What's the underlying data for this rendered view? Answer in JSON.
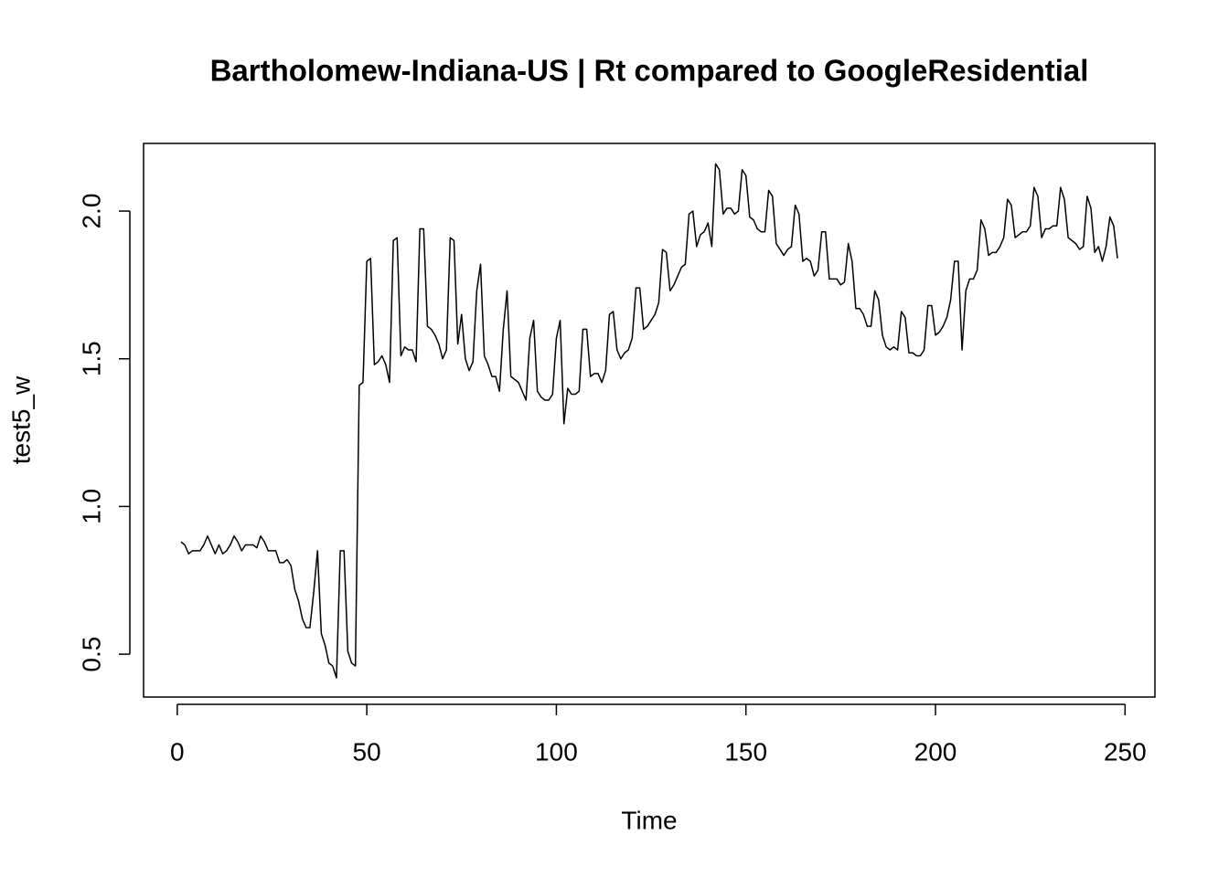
{
  "chart_data": {
    "type": "line",
    "title": "Bartholomew-Indiana-US | Rt compared to GoogleResidential",
    "x_label": "Time",
    "y_label": "test5_w",
    "color": "#000000",
    "x": [
      1,
      2,
      3,
      4,
      5,
      6,
      7,
      8,
      9,
      10,
      11,
      12,
      13,
      14,
      15,
      16,
      17,
      18,
      19,
      20,
      21,
      22,
      23,
      24,
      25,
      26,
      27,
      28,
      29,
      30,
      31,
      32,
      33,
      34,
      35,
      36,
      37,
      38,
      39,
      40,
      41,
      42,
      43,
      44,
      45,
      46,
      47,
      48,
      49,
      50,
      51,
      52,
      53,
      54,
      55,
      56,
      57,
      58,
      59,
      60,
      61,
      62,
      63,
      64,
      65,
      66,
      67,
      68,
      69,
      70,
      71,
      72,
      73,
      74,
      75,
      76,
      77,
      78,
      79,
      80,
      81,
      82,
      83,
      84,
      85,
      86,
      87,
      88,
      89,
      90,
      91,
      92,
      93,
      94,
      95,
      96,
      97,
      98,
      99,
      100,
      101,
      102,
      103,
      104,
      105,
      106,
      107,
      108,
      109,
      110,
      111,
      112,
      113,
      114,
      115,
      116,
      117,
      118,
      119,
      120,
      121,
      122,
      123,
      124,
      125,
      126,
      127,
      128,
      129,
      130,
      131,
      132,
      133,
      134,
      135,
      136,
      137,
      138,
      139,
      140,
      141,
      142,
      143,
      144,
      145,
      146,
      147,
      148,
      149,
      150,
      151,
      152,
      153,
      154,
      155,
      156,
      157,
      158,
      159,
      160,
      161,
      162,
      163,
      164,
      165,
      166,
      167,
      168,
      169,
      170,
      171,
      172,
      173,
      174,
      175,
      176,
      177,
      178,
      179,
      180,
      181,
      182,
      183,
      184,
      185,
      186,
      187,
      188,
      189,
      190,
      191,
      192,
      193,
      194,
      195,
      196,
      197,
      198,
      199,
      200,
      201,
      202,
      203,
      204,
      205,
      206,
      207,
      208,
      209,
      210,
      211,
      212,
      213,
      214,
      215,
      216,
      217,
      218,
      219,
      220,
      221,
      222,
      223,
      224,
      225,
      226,
      227,
      228,
      229,
      230,
      231,
      232,
      233,
      234,
      235,
      236,
      237,
      238,
      239,
      240,
      241,
      242,
      243,
      244,
      245,
      246,
      247,
      248
    ],
    "values": [
      0.88,
      0.87,
      0.84,
      0.85,
      0.85,
      0.85,
      0.87,
      0.9,
      0.87,
      0.84,
      0.87,
      0.84,
      0.85,
      0.87,
      0.9,
      0.88,
      0.85,
      0.87,
      0.87,
      0.87,
      0.86,
      0.9,
      0.88,
      0.85,
      0.85,
      0.85,
      0.81,
      0.81,
      0.82,
      0.8,
      0.72,
      0.68,
      0.62,
      0.59,
      0.59,
      0.71,
      0.85,
      0.57,
      0.53,
      0.47,
      0.46,
      0.42,
      0.85,
      0.85,
      0.51,
      0.47,
      0.46,
      1.41,
      1.42,
      1.83,
      1.84,
      1.48,
      1.49,
      1.51,
      1.48,
      1.42,
      1.9,
      1.91,
      1.51,
      1.54,
      1.53,
      1.53,
      1.49,
      1.94,
      1.94,
      1.61,
      1.6,
      1.58,
      1.55,
      1.5,
      1.53,
      1.91,
      1.9,
      1.55,
      1.65,
      1.5,
      1.46,
      1.49,
      1.73,
      1.82,
      1.51,
      1.48,
      1.44,
      1.44,
      1.39,
      1.6,
      1.73,
      1.44,
      1.43,
      1.42,
      1.39,
      1.36,
      1.57,
      1.63,
      1.39,
      1.37,
      1.36,
      1.36,
      1.38,
      1.57,
      1.63,
      1.28,
      1.4,
      1.38,
      1.38,
      1.39,
      1.6,
      1.6,
      1.44,
      1.45,
      1.45,
      1.42,
      1.46,
      1.65,
      1.66,
      1.53,
      1.5,
      1.52,
      1.53,
      1.57,
      1.74,
      1.74,
      1.6,
      1.61,
      1.63,
      1.65,
      1.69,
      1.87,
      1.86,
      1.73,
      1.75,
      1.78,
      1.81,
      1.82,
      1.99,
      2.0,
      1.88,
      1.92,
      1.93,
      1.96,
      1.88,
      2.16,
      2.14,
      1.99,
      2.01,
      2.01,
      1.99,
      2.0,
      2.14,
      2.12,
      1.98,
      1.97,
      1.94,
      1.93,
      1.93,
      2.07,
      2.05,
      1.89,
      1.87,
      1.85,
      1.87,
      1.88,
      2.02,
      1.99,
      1.83,
      1.84,
      1.83,
      1.78,
      1.8,
      1.93,
      1.93,
      1.77,
      1.77,
      1.77,
      1.75,
      1.76,
      1.89,
      1.83,
      1.67,
      1.67,
      1.65,
      1.61,
      1.61,
      1.73,
      1.7,
      1.58,
      1.54,
      1.53,
      1.54,
      1.53,
      1.66,
      1.64,
      1.52,
      1.52,
      1.51,
      1.51,
      1.53,
      1.68,
      1.68,
      1.58,
      1.59,
      1.61,
      1.64,
      1.7,
      1.83,
      1.83,
      1.53,
      1.73,
      1.77,
      1.77,
      1.8,
      1.97,
      1.94,
      1.85,
      1.86,
      1.86,
      1.88,
      1.91,
      2.04,
      2.02,
      1.91,
      1.92,
      1.93,
      1.93,
      1.95,
      2.08,
      2.05,
      1.91,
      1.94,
      1.94,
      1.95,
      1.95,
      2.08,
      2.04,
      1.91,
      1.9,
      1.89,
      1.87,
      1.88,
      2.05,
      2.01,
      1.86,
      1.88,
      1.83,
      1.88,
      1.98,
      1.95,
      1.84
    ],
    "xlim": [
      -8.88,
      257.88
    ],
    "ylim": [
      0.355,
      2.229
    ],
    "xticks": [
      0,
      50,
      100,
      150,
      200,
      250
    ],
    "yticks": [
      0.5,
      {
        "value": 1.0,
        "label": "1.0"
      },
      1.5,
      {
        "value": 2.0,
        "label": "2.0"
      }
    ],
    "grid": false
  }
}
